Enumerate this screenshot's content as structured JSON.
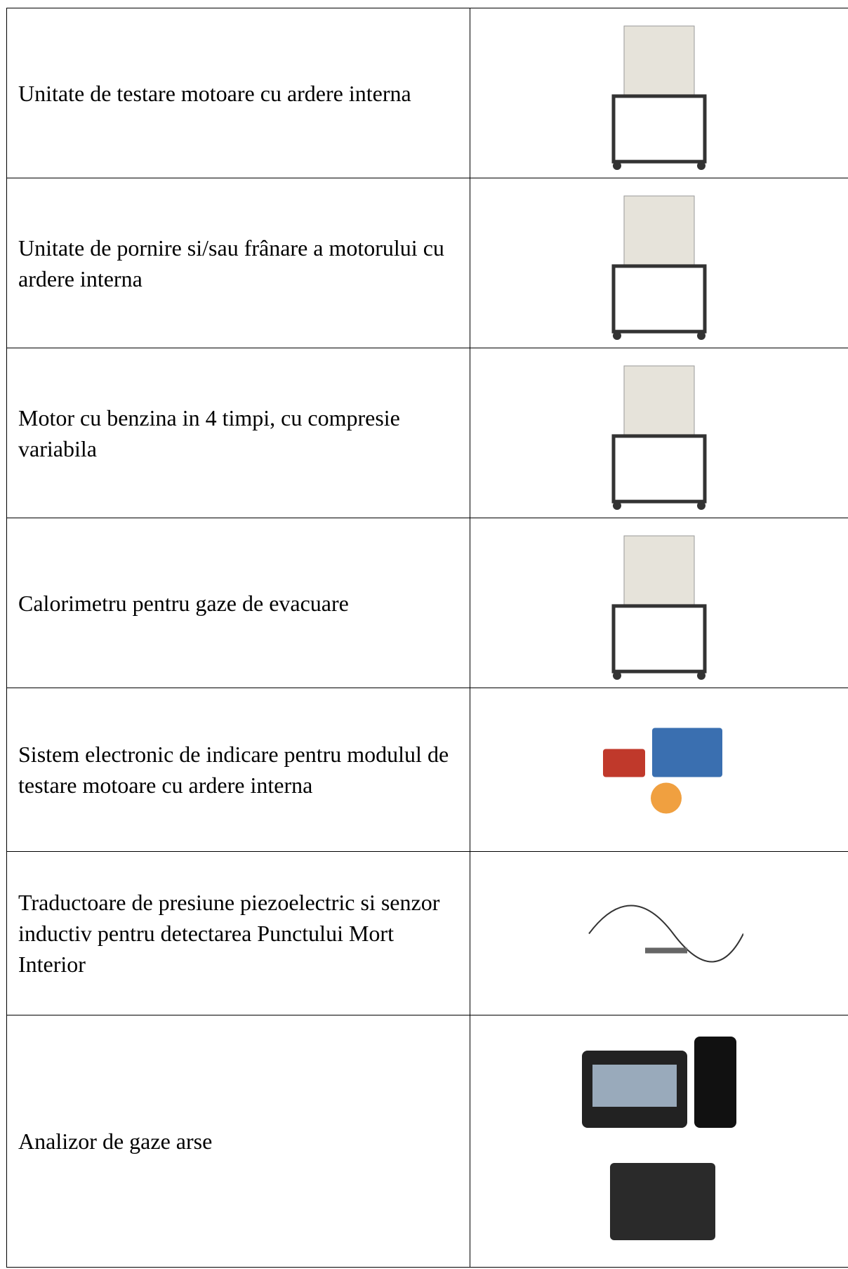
{
  "table": {
    "rows": [
      [
        "Unitate de testare motoare cu ardere interna"
      ],
      [
        "Unitate de pornire si/sau frânare a motorului cu ardere interna"
      ],
      [
        "Motor cu benzina in 4 timpi, cu compresie variabila"
      ],
      [
        "Calorimetru pentru gaze de evacuare"
      ],
      [
        "Sistem electronic de indicare pentru modulul de testare motoare cu ardere interna"
      ],
      [
        "Traductoare de presiune piezoelectric si senzor inductiv pentru detectarea Punctului Mort Interior"
      ],
      [
        "Analizor de gaze arse"
      ]
    ]
  }
}
